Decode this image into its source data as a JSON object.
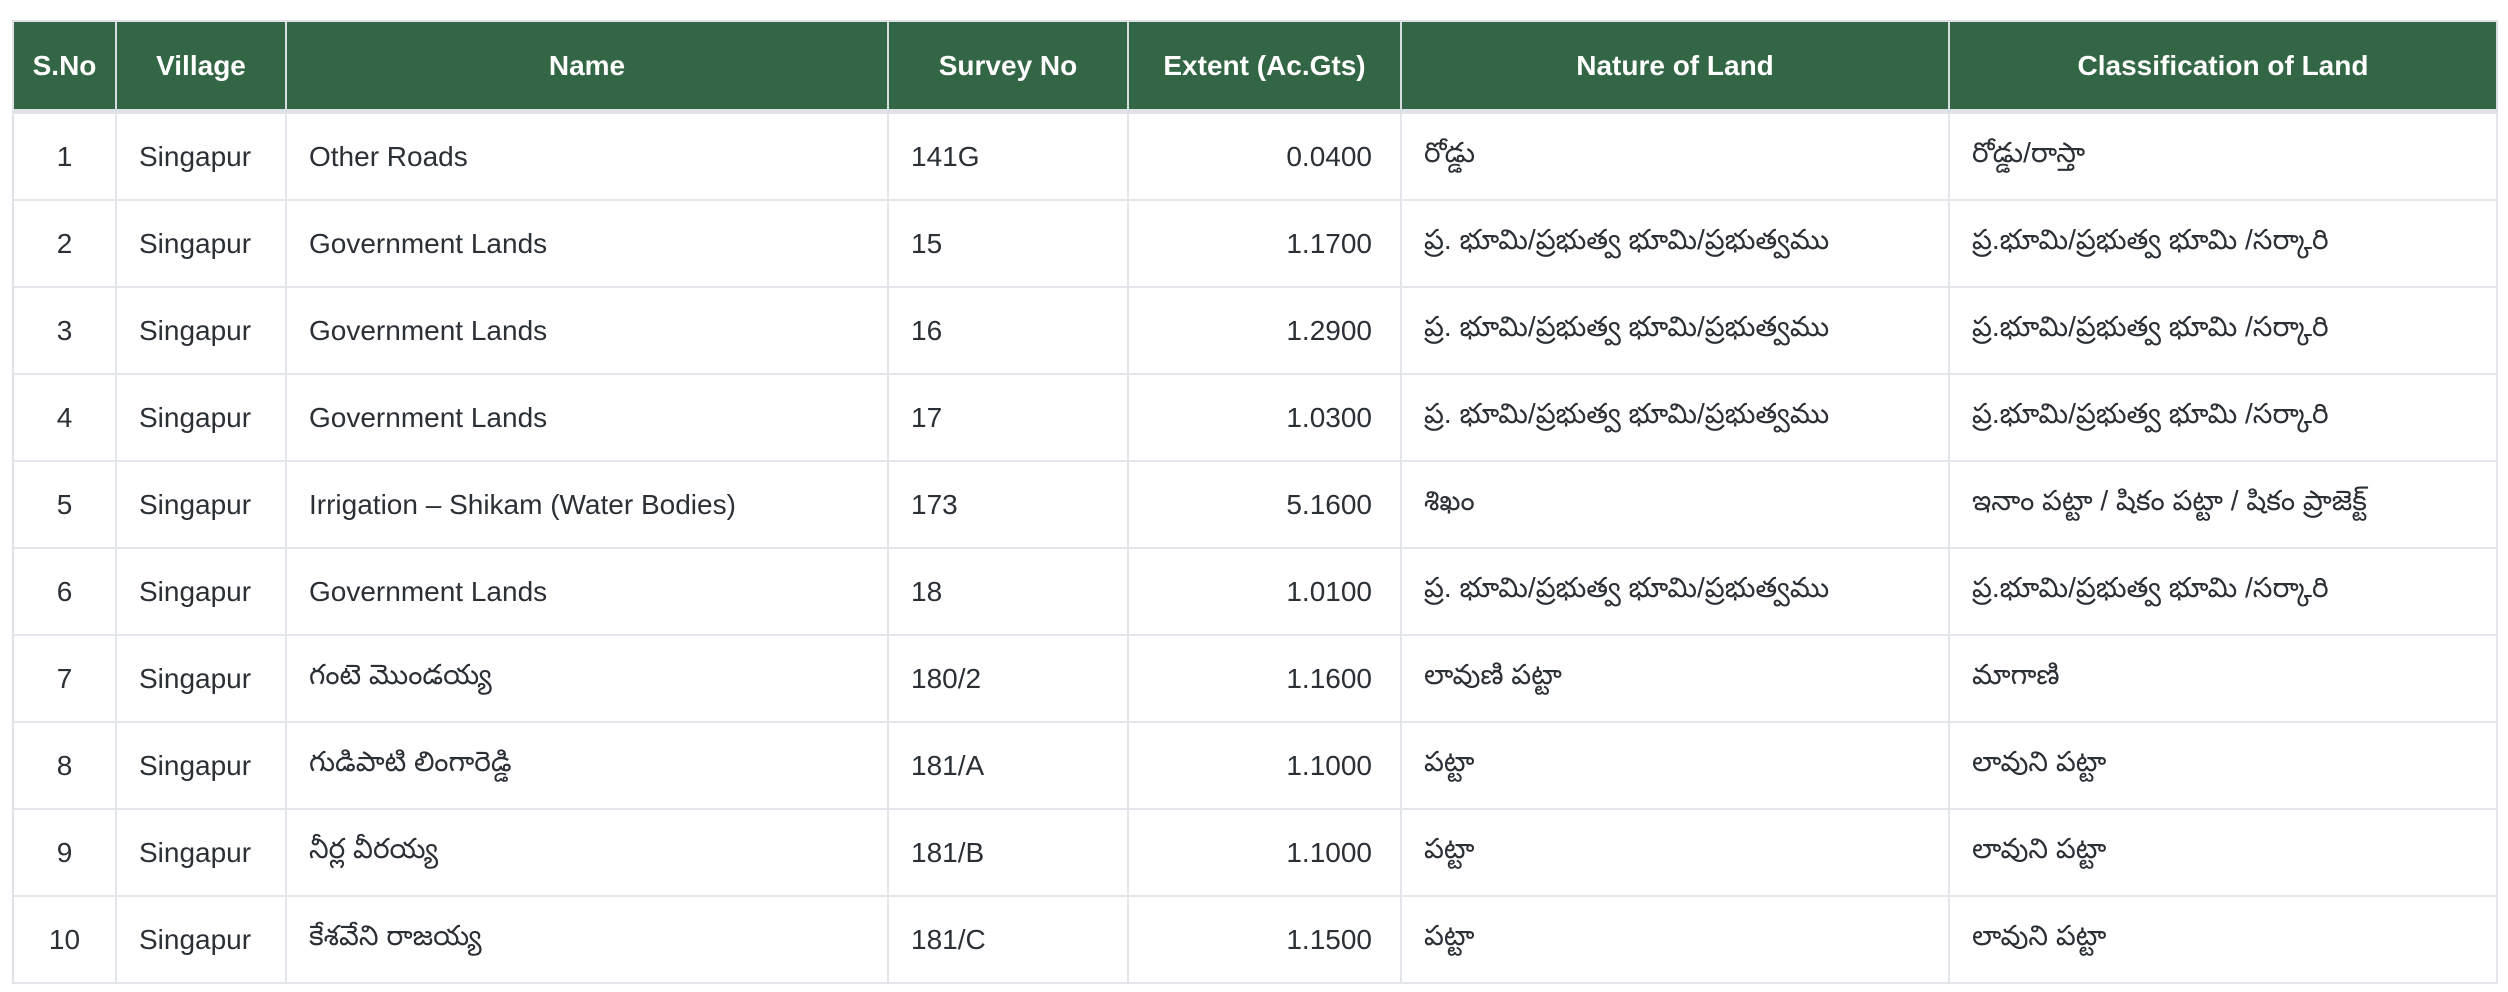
{
  "colors": {
    "header_bg": "#336644",
    "header_text": "#ffffff",
    "body_text": "#2b3036",
    "border": "#e3e6ea"
  },
  "table": {
    "columns": [
      {
        "key": "sno",
        "label": "S.No",
        "align": "center"
      },
      {
        "key": "village",
        "label": "Village",
        "align": "left"
      },
      {
        "key": "name",
        "label": "Name",
        "align": "left"
      },
      {
        "key": "survey_no",
        "label": "Survey No",
        "align": "left"
      },
      {
        "key": "extent",
        "label": "Extent (Ac.Gts)",
        "align": "right"
      },
      {
        "key": "nature",
        "label": "Nature of Land",
        "align": "left"
      },
      {
        "key": "classification",
        "label": "Classification of Land",
        "align": "left"
      }
    ],
    "rows": [
      {
        "sno": "1",
        "village": "Singapur",
        "name": "Other Roads",
        "survey_no": "141G",
        "extent": "0.0400",
        "nature": "రోడ్డు",
        "classification": "రోడ్డు/రాస్తా"
      },
      {
        "sno": "2",
        "village": "Singapur",
        "name": "Government Lands",
        "survey_no": "15",
        "extent": "1.1700",
        "nature": "ప్ర. భూమి/ప్రభుత్వ భూమి/ప్రభుత్వము",
        "classification": "ప్ర.భూమి/ప్రభుత్వ భూమి /సర్కారి"
      },
      {
        "sno": "3",
        "village": "Singapur",
        "name": "Government Lands",
        "survey_no": "16",
        "extent": "1.2900",
        "nature": "ప్ర. భూమి/ప్రభుత్వ భూమి/ప్రభుత్వము",
        "classification": "ప్ర.భూమి/ప్రభుత్వ భూమి /సర్కారి"
      },
      {
        "sno": "4",
        "village": "Singapur",
        "name": "Government Lands",
        "survey_no": "17",
        "extent": "1.0300",
        "nature": "ప్ర. భూమి/ప్రభుత్వ భూమి/ప్రభుత్వము",
        "classification": "ప్ర.భూమి/ప్రభుత్వ భూమి /సర్కారి"
      },
      {
        "sno": "5",
        "village": "Singapur",
        "name": "Irrigation – Shikam (Water Bodies)",
        "survey_no": "173",
        "extent": "5.1600",
        "nature": "శిఖం",
        "classification": "ఇనాం పట్టా / షికం పట్టా / షికం ప్రాజెక్ట్"
      },
      {
        "sno": "6",
        "village": "Singapur",
        "name": "Government Lands",
        "survey_no": "18",
        "extent": "1.0100",
        "nature": "ప్ర. భూమి/ప్రభుత్వ భూమి/ప్రభుత్వము",
        "classification": "ప్ర.భూమి/ప్రభుత్వ భూమి /సర్కారి"
      },
      {
        "sno": "7",
        "village": "Singapur",
        "name": "గంటె మొండయ్య",
        "survey_no": "180/2",
        "extent": "1.1600",
        "nature": "లావుణి పట్టా",
        "classification": "మాగాణి"
      },
      {
        "sno": "8",
        "village": "Singapur",
        "name": "గుడిపాటి లింగారెడ్డి",
        "survey_no": "181/A",
        "extent": "1.1000",
        "nature": "పట్టా",
        "classification": "లావుని పట్టా"
      },
      {
        "sno": "9",
        "village": "Singapur",
        "name": "నీర్ల వీరయ్య",
        "survey_no": "181/B",
        "extent": "1.1000",
        "nature": "పట్టా",
        "classification": "లావుని పట్టా"
      },
      {
        "sno": "10",
        "village": "Singapur",
        "name": "కేశవేని రాజయ్య",
        "survey_no": "181/C",
        "extent": "1.1500",
        "nature": "పట్టా",
        "classification": "లావుని పట్టా"
      }
    ]
  }
}
